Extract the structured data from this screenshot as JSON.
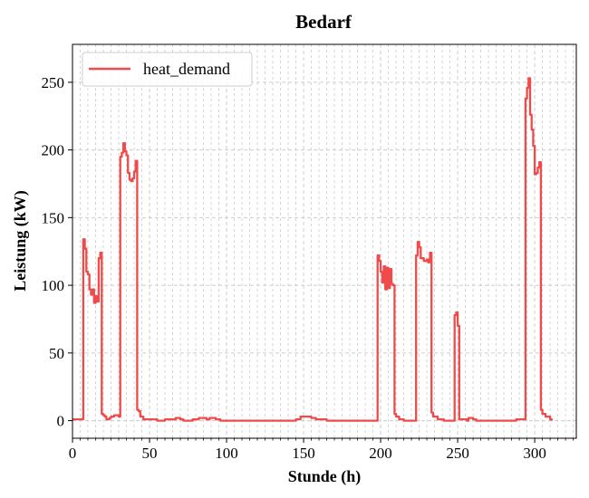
{
  "chart_data": {
    "type": "line",
    "title": "Bedarf",
    "xlabel": "Stunde (h)",
    "ylabel": "Leistung (kW)",
    "xlim": [
      0,
      327
    ],
    "ylim": [
      -13,
      278
    ],
    "xticks": [
      0,
      50,
      100,
      150,
      200,
      250,
      300
    ],
    "yticks": [
      0,
      50,
      100,
      150,
      200,
      250
    ],
    "grid": true,
    "legend_position": "top-left",
    "colors": {
      "series": "#f04a4a",
      "grid": "#cccccc"
    },
    "series": [
      {
        "name": "heat_demand",
        "step": true,
        "points": [
          [
            0,
            1
          ],
          [
            7,
            1
          ],
          [
            7,
            134
          ],
          [
            8,
            127
          ],
          [
            9,
            110
          ],
          [
            10,
            108
          ],
          [
            11,
            97
          ],
          [
            12,
            93
          ],
          [
            13,
            97
          ],
          [
            14,
            87
          ],
          [
            15,
            92
          ],
          [
            16,
            88
          ],
          [
            17,
            120
          ],
          [
            18,
            124
          ],
          [
            19,
            5
          ],
          [
            20,
            4
          ],
          [
            21,
            3
          ],
          [
            22,
            1
          ],
          [
            24,
            2
          ],
          [
            25,
            3
          ],
          [
            27,
            4
          ],
          [
            30,
            3
          ],
          [
            31,
            3
          ],
          [
            31,
            195
          ],
          [
            32,
            198
          ],
          [
            33,
            205
          ],
          [
            34,
            199
          ],
          [
            35,
            196
          ],
          [
            36,
            183
          ],
          [
            37,
            178
          ],
          [
            38,
            177
          ],
          [
            39,
            179
          ],
          [
            40,
            184
          ],
          [
            41,
            192
          ],
          [
            42,
            8
          ],
          [
            43,
            7
          ],
          [
            44,
            3
          ],
          [
            46,
            1
          ],
          [
            50,
            1
          ],
          [
            55,
            0
          ],
          [
            60,
            1
          ],
          [
            65,
            1
          ],
          [
            67,
            2
          ],
          [
            70,
            1
          ],
          [
            72,
            0
          ],
          [
            78,
            1
          ],
          [
            82,
            2
          ],
          [
            87,
            1
          ],
          [
            89,
            2
          ],
          [
            93,
            1
          ],
          [
            96,
            0
          ],
          [
            140,
            0
          ],
          [
            145,
            1
          ],
          [
            148,
            3
          ],
          [
            155,
            2
          ],
          [
            158,
            1
          ],
          [
            165,
            0
          ],
          [
            192,
            0
          ],
          [
            198,
            1
          ],
          [
            198,
            122
          ],
          [
            199,
            118
          ],
          [
            200,
            110
          ],
          [
            201,
            102
          ],
          [
            202,
            114
          ],
          [
            203,
            97
          ],
          [
            204,
            113
          ],
          [
            205,
            98
          ],
          [
            206,
            112
          ],
          [
            207,
            101
          ],
          [
            208,
            100
          ],
          [
            209,
            5
          ],
          [
            210,
            3
          ],
          [
            212,
            1
          ],
          [
            215,
            0
          ],
          [
            222,
            0
          ],
          [
            223,
            1
          ],
          [
            223,
            122
          ],
          [
            224,
            132
          ],
          [
            225,
            128
          ],
          [
            226,
            120
          ],
          [
            228,
            118
          ],
          [
            230,
            119
          ],
          [
            231,
            117
          ],
          [
            232,
            124
          ],
          [
            233,
            6
          ],
          [
            234,
            3
          ],
          [
            235,
            3
          ],
          [
            237,
            1
          ],
          [
            241,
            0
          ],
          [
            247,
            0
          ],
          [
            248,
            78
          ],
          [
            249,
            80
          ],
          [
            250,
            70
          ],
          [
            251,
            1
          ],
          [
            256,
            0
          ],
          [
            257,
            2
          ],
          [
            260,
            1
          ],
          [
            262,
            0
          ],
          [
            280,
            0
          ],
          [
            288,
            1
          ],
          [
            294,
            1
          ],
          [
            294,
            238
          ],
          [
            295,
            246
          ],
          [
            296,
            253
          ],
          [
            297,
            226
          ],
          [
            298,
            215
          ],
          [
            299,
            203
          ],
          [
            300,
            182
          ],
          [
            301,
            183
          ],
          [
            302,
            187
          ],
          [
            303,
            191
          ],
          [
            304,
            8
          ],
          [
            305,
            5
          ],
          [
            307,
            3
          ],
          [
            310,
            1
          ],
          [
            311,
            0
          ]
        ]
      }
    ]
  }
}
